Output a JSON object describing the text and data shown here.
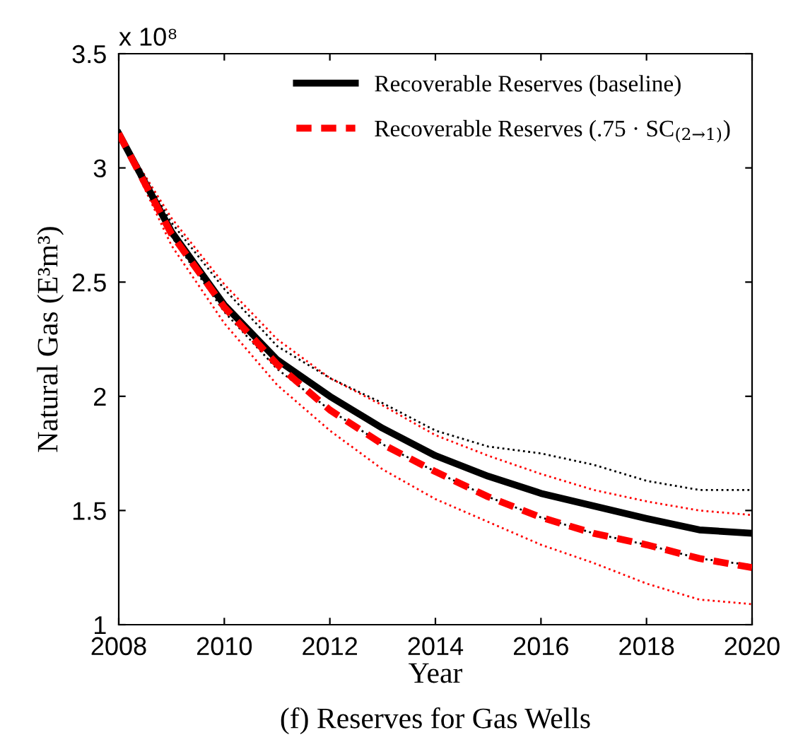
{
  "chart_data": {
    "type": "line",
    "title": "(f) Reserves for Gas Wells",
    "xlabel": "Year",
    "ylabel": "Natural Gas (E³m³)",
    "annotations": [
      "x 10⁸"
    ],
    "x": [
      2008,
      2009,
      2010,
      2011,
      2012,
      2013,
      2014,
      2015,
      2016,
      2017,
      2018,
      2019,
      2020
    ],
    "xlim": [
      2008,
      2020
    ],
    "xticks": [
      2008,
      2010,
      2012,
      2014,
      2016,
      2018,
      2020
    ],
    "ylim": [
      1,
      3.5
    ],
    "yticks": [
      1,
      1.5,
      2,
      2.5,
      3,
      3.5
    ],
    "grid": false,
    "legend": "top right",
    "series": [
      {
        "color": "#000000",
        "line_style": "dotted",
        "values": [
          3.15,
          2.76,
          2.47,
          2.22,
          2.08,
          1.97,
          1.85,
          1.78,
          1.75,
          1.7,
          1.63,
          1.59,
          1.59
        ]
      },
      {
        "color": "#000000",
        "line_style": "dotted",
        "values": [
          3.15,
          2.7,
          2.37,
          2.12,
          1.94,
          1.79,
          1.67,
          1.56,
          1.47,
          1.4,
          1.35,
          1.29,
          1.26
        ]
      },
      {
        "color": "#ff0000",
        "line_style": "dotted",
        "values": [
          3.15,
          2.78,
          2.49,
          2.25,
          2.08,
          1.96,
          1.83,
          1.74,
          1.66,
          1.59,
          1.54,
          1.5,
          1.48
        ]
      },
      {
        "color": "#ff0000",
        "line_style": "dotted",
        "values": [
          3.15,
          2.66,
          2.32,
          2.05,
          1.85,
          1.68,
          1.55,
          1.45,
          1.35,
          1.27,
          1.18,
          1.11,
          1.09
        ]
      },
      {
        "name": "Recoverable Reserves (baseline)",
        "color": "#000000",
        "line_style": "solid",
        "values": [
          3.15,
          2.72,
          2.4,
          2.16,
          2.0,
          1.86,
          1.74,
          1.65,
          1.575,
          1.52,
          1.465,
          1.415,
          1.4
        ]
      },
      {
        "name": "Recoverable Reserves (.75 · SC$_{(2→1)}$)",
        "color": "#ff0000",
        "line_style": "dashed",
        "values": [
          3.15,
          2.71,
          2.39,
          2.14,
          1.94,
          1.79,
          1.67,
          1.56,
          1.47,
          1.4,
          1.35,
          1.29,
          1.25
        ]
      }
    ]
  }
}
